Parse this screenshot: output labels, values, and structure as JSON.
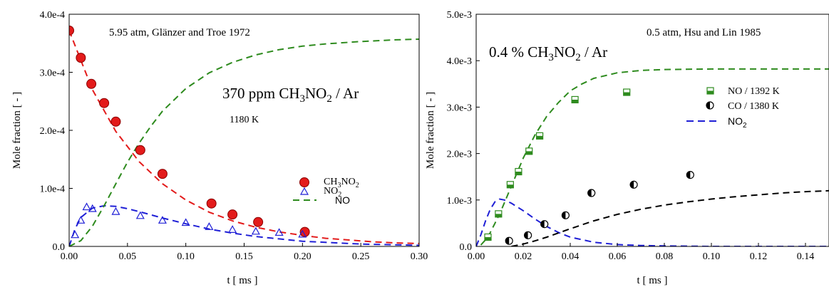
{
  "colors": {
    "red": "#e31b1b",
    "blue": "#1f1fd6",
    "green": "#2e8b1e",
    "black": "#000000"
  },
  "chart_data": [
    {
      "type": "scatter",
      "xlabel": "t [ ms ]",
      "ylabel": "Mole fraction [ - ]",
      "xlim": [
        0,
        0.3
      ],
      "ylim": [
        0,
        0.0004
      ],
      "xticks": [
        "0.00",
        "0.05",
        "0.10",
        "0.15",
        "0.20",
        "0.25",
        "0.30"
      ],
      "yticks": [
        "0.0",
        "1.0e-4",
        "2.0e-4",
        "3.0e-4",
        "4.0e-4"
      ],
      "annotations": {
        "source": "5.95 atm, Glänzer and Troe 1972",
        "mixture_prefix": "370 ppm CH",
        "mixture_sub1": "3",
        "mixture_mid": "NO",
        "mixture_sub2": "2",
        "mixture_suffix": " / Ar",
        "temperature": "1180 K"
      },
      "legend": {
        "placement": "right-center",
        "ch3no2_prefix": "CH",
        "ch3no2_sub1": "3",
        "ch3no2_mid": "NO",
        "ch3no2_sub2": "2",
        "no2_prefix": "NO",
        "no2_sub": "2",
        "no": "NO"
      },
      "series": [
        {
          "key": "ch3no2_exp",
          "style": "filled-circle",
          "color": "red",
          "x": [
            0.0,
            0.01,
            0.019,
            0.03,
            0.04,
            0.061,
            0.08,
            0.122,
            0.14,
            0.162,
            0.202
          ],
          "y": [
            0.000372,
            0.000325,
            0.00028,
            0.000247,
            0.000215,
            0.000166,
            0.000125,
            7.4e-05,
            5.5e-05,
            4.2e-05,
            2.5e-05
          ]
        },
        {
          "key": "no2_exp",
          "style": "open-triangle",
          "color": "blue",
          "x": [
            0.005,
            0.01,
            0.015,
            0.02,
            0.04,
            0.061,
            0.08,
            0.1,
            0.12,
            0.14,
            0.16,
            0.18,
            0.2
          ],
          "y": [
            2e-05,
            4.5e-05,
            6.8e-05,
            6.5e-05,
            6e-05,
            5.3e-05,
            4.5e-05,
            4.1e-05,
            3.4e-05,
            2.9e-05,
            2.6e-05,
            2.4e-05,
            2.1e-05
          ]
        },
        {
          "key": "ch3no2_model",
          "style": "dashed",
          "color": "red",
          "x": [
            0,
            0.02,
            0.04,
            0.06,
            0.08,
            0.1,
            0.12,
            0.14,
            0.16,
            0.18,
            0.2,
            0.22,
            0.24,
            0.26,
            0.28,
            0.3
          ],
          "y": [
            0.000372,
            0.00027,
            0.000198,
            0.000146,
            0.000108,
            8e-05,
            5.9e-05,
            4.4e-05,
            3.3e-05,
            2.5e-05,
            1.9e-05,
            1.4e-05,
            1.1e-05,
            8e-06,
            6e-06,
            5e-06
          ]
        },
        {
          "key": "no2_model",
          "style": "dashed",
          "color": "blue",
          "x": [
            0,
            0.005,
            0.01,
            0.02,
            0.03,
            0.04,
            0.05,
            0.06,
            0.08,
            0.1,
            0.12,
            0.14,
            0.16,
            0.18,
            0.2,
            0.25,
            0.3
          ],
          "y": [
            0,
            3e-05,
            5e-05,
            6.6e-05,
            7e-05,
            6.9e-05,
            6.5e-05,
            6e-05,
            4.9e-05,
            3.9e-05,
            3e-05,
            2.3e-05,
            1.7e-05,
            1.3e-05,
            9e-06,
            4e-06,
            2e-06
          ]
        },
        {
          "key": "no_model",
          "style": "dashed",
          "color": "green",
          "x": [
            0,
            0.01,
            0.02,
            0.03,
            0.04,
            0.05,
            0.06,
            0.07,
            0.08,
            0.1,
            0.12,
            0.14,
            0.16,
            0.18,
            0.2,
            0.22,
            0.25,
            0.28,
            0.3
          ],
          "y": [
            0,
            1e-05,
            3.5e-05,
            7e-05,
            0.000108,
            0.000145,
            0.000178,
            0.000207,
            0.000233,
            0.000272,
            0.000299,
            0.000317,
            0.00033,
            0.000339,
            0.000345,
            0.000349,
            0.000353,
            0.000356,
            0.000357
          ]
        }
      ]
    },
    {
      "type": "scatter",
      "xlabel": "t [ ms ]",
      "ylabel": "Mole fraction [ - ]",
      "xlim": [
        0,
        0.15
      ],
      "ylim": [
        0,
        0.005
      ],
      "xticks": [
        "0.00",
        "0.02",
        "0.04",
        "0.06",
        "0.08",
        "0.10",
        "0.12",
        "0.14"
      ],
      "yticks": [
        "0.0",
        "1.0e-3",
        "2.0e-3",
        "3.0e-3",
        "4.0e-3",
        "5.0e-3"
      ],
      "annotations": {
        "source": "0.5 atm, Hsu and Lin 1985",
        "mixture_prefix": "0.4 % CH",
        "mixture_sub1": "3",
        "mixture_mid": "NO",
        "mixture_sub2": "2",
        "mixture_suffix": " / Ar"
      },
      "legend": {
        "placement": "right-upper",
        "no": "NO / 1392 K",
        "co": "CO / 1380 K",
        "no2_prefix": "NO",
        "no2_sub": "2"
      },
      "series": [
        {
          "key": "no_exp",
          "style": "half-square",
          "color": "green",
          "x": [
            0.005,
            0.0095,
            0.0145,
            0.018,
            0.0225,
            0.027,
            0.042,
            0.064
          ],
          "y": [
            0.0002,
            0.0007,
            0.00133,
            0.00161,
            0.00205,
            0.00238,
            0.00316,
            0.00332
          ]
        },
        {
          "key": "co_exp",
          "style": "half-circle",
          "color": "black",
          "x": [
            0.014,
            0.022,
            0.029,
            0.038,
            0.049,
            0.067,
            0.091
          ],
          "y": [
            0.00012,
            0.00024,
            0.00048,
            0.00067,
            0.00115,
            0.00133,
            0.00154
          ]
        },
        {
          "key": "no_model",
          "style": "dashed",
          "color": "green",
          "x": [
            0.002,
            0.005,
            0.01,
            0.015,
            0.02,
            0.025,
            0.03,
            0.035,
            0.04,
            0.045,
            0.05,
            0.06,
            0.07,
            0.08,
            0.1,
            0.12,
            0.15
          ],
          "y": [
            3e-05,
            0.0002,
            0.0007,
            0.0013,
            0.0019,
            0.0024,
            0.0028,
            0.0031,
            0.00335,
            0.0035,
            0.00362,
            0.00374,
            0.00379,
            0.00381,
            0.00382,
            0.00382,
            0.00382
          ]
        },
        {
          "key": "no2_model",
          "style": "dashed",
          "color": "blue",
          "x": [
            0,
            0.002,
            0.004,
            0.006,
            0.008,
            0.01,
            0.012,
            0.015,
            0.02,
            0.025,
            0.03,
            0.035,
            0.04,
            0.05,
            0.06,
            0.07,
            0.08,
            0.1,
            0.12,
            0.15
          ],
          "y": [
            0,
            0.00025,
            0.00055,
            0.0008,
            0.00096,
            0.00102,
            0.001,
            0.00093,
            0.00077,
            0.00059,
            0.00043,
            0.0003,
            0.0002,
            9e-05,
            4e-05,
            2e-05,
            1e-05,
            0,
            0,
            0
          ]
        },
        {
          "key": "co_model",
          "style": "dashed",
          "color": "black",
          "x": [
            0.015,
            0.02,
            0.025,
            0.03,
            0.035,
            0.04,
            0.05,
            0.06,
            0.07,
            0.08,
            0.09,
            0.1,
            0.11,
            0.12,
            0.13,
            0.14,
            0.15
          ],
          "y": [
            0,
            5e-05,
            0.00012,
            0.0002,
            0.00029,
            0.00038,
            0.00055,
            0.00069,
            0.0008,
            0.00089,
            0.00096,
            0.00102,
            0.00107,
            0.00111,
            0.00115,
            0.00118,
            0.0012
          ]
        }
      ]
    }
  ]
}
